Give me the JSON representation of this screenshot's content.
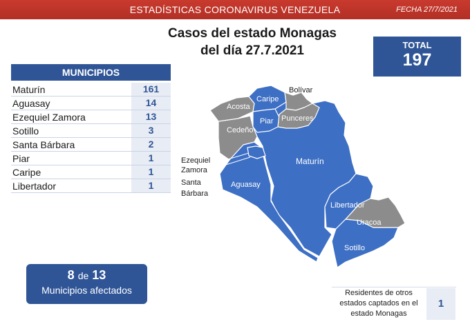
{
  "header": {
    "title": "ESTADÍSTICAS CORONAVIRUS VENEZUELA",
    "date": "FECHA 27/7/2021"
  },
  "heading": {
    "line1": "Casos del estado Monagas",
    "line2": "del día 27.7.2021"
  },
  "total": {
    "label": "TOTAL",
    "value": "197"
  },
  "municipios": {
    "header": "MUNICIPIOS",
    "items": [
      {
        "name": "Maturín",
        "count": "161"
      },
      {
        "name": "Aguasay",
        "count": "14"
      },
      {
        "name": "Ezequiel Zamora",
        "count": "13"
      },
      {
        "name": "Sotillo",
        "count": "3"
      },
      {
        "name": "Santa Bárbara",
        "count": "2"
      },
      {
        "name": "Piar",
        "count": "1"
      },
      {
        "name": "Caripe",
        "count": "1"
      },
      {
        "name": "Libertador",
        "count": "1"
      }
    ]
  },
  "affected": {
    "count": "8",
    "de": "de",
    "total": "13",
    "label": "Municipios afectados"
  },
  "residents": {
    "line1": "Residentes de otros",
    "line2": "estados captados en el",
    "line3": "estado Monagas",
    "value": "1"
  },
  "map_labels": {
    "bolivar": "Bolívar",
    "acosta": "Acosta",
    "caripe": "Caripe",
    "piar": "Piar",
    "punceres": "Punceres",
    "cedeno": "Cedeño",
    "maturin": "Maturín",
    "ezequiel_1": "Ezequiel",
    "ezequiel_2": "Zamora",
    "santa_1": "Santa",
    "santa_2": "Bárbara",
    "aguasay": "Aguasay",
    "libertador": "Libertador",
    "uracoa": "Uracoa",
    "sotillo": "Sotillo"
  },
  "colors": {
    "affected": "#3d6fc4",
    "unaffected": "#8c8c8c",
    "accent": "#2f5597",
    "banner": "#c0392b"
  }
}
